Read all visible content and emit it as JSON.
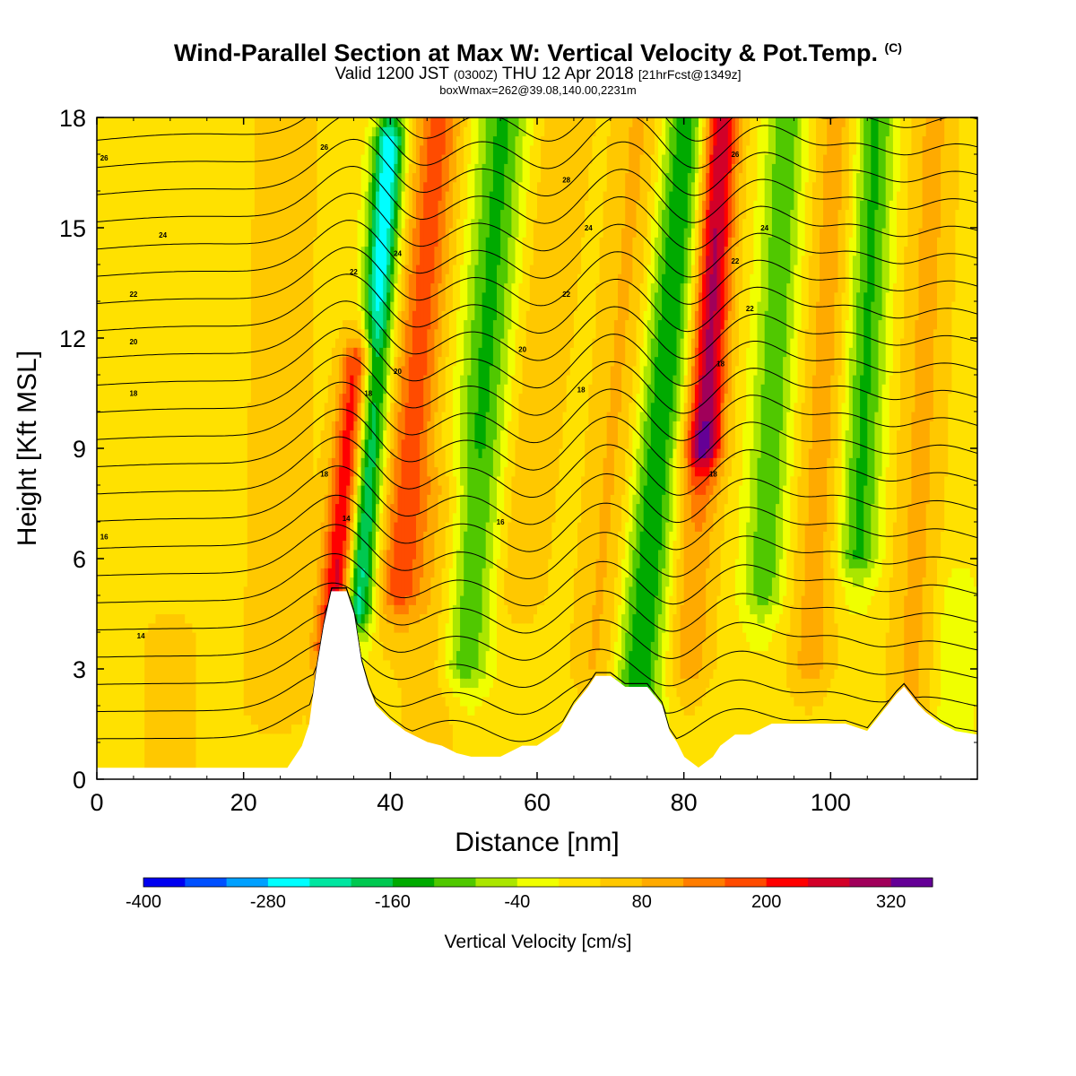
{
  "header": {
    "title_main": "Wind-Parallel Section at Max W: Vertical Velocity & Pot.Temp.",
    "title_copyright": "(C)",
    "valid_prefix": "Valid 1200 JST",
    "valid_utc": "(0300Z)",
    "valid_date": "THU 12 Apr 2018",
    "valid_fcst": "[21hrFcst@1349z]",
    "box_info": "boxWmax=262@39.08,140.00,2231m"
  },
  "chart_data": {
    "type": "heatmap",
    "xlabel": "Distance [nm]",
    "ylabel": "Height [Kft MSL]",
    "xlim": [
      0,
      120
    ],
    "ylim": [
      0,
      18
    ],
    "x_ticks": [
      0,
      20,
      40,
      60,
      80,
      100
    ],
    "y_ticks": [
      0,
      3,
      6,
      9,
      12,
      15,
      18
    ],
    "colorbar": {
      "title": "Vertical Velocity [cm/s]",
      "tick_labels": [
        "-400",
        "-280",
        "-160",
        "-40",
        "80",
        "200",
        "320"
      ],
      "tick_values": [
        -400,
        -280,
        -160,
        -40,
        80,
        200,
        320
      ],
      "levels": [
        -400,
        -360,
        -320,
        -280,
        -240,
        -200,
        -160,
        -120,
        -80,
        -40,
        0,
        40,
        80,
        120,
        160,
        200,
        240,
        280,
        320,
        360
      ],
      "colors": [
        "#0000f0",
        "#0050ff",
        "#00a0ff",
        "#00ffff",
        "#00e6a0",
        "#00c850",
        "#00aa00",
        "#50c800",
        "#aae600",
        "#f0ff00",
        "#ffe100",
        "#ffc800",
        "#ffaa00",
        "#ff7d00",
        "#ff4b00",
        "#ff0000",
        "#d20028",
        "#a0005a",
        "#640096"
      ]
    },
    "terrain_profile": {
      "x": [
        0,
        26,
        27,
        28,
        29,
        30,
        31,
        32,
        33,
        34,
        35,
        36,
        37,
        38,
        39,
        40,
        42,
        43,
        45,
        47,
        49,
        51,
        53,
        55,
        58,
        60,
        63,
        65,
        67,
        68,
        70,
        72,
        75,
        77,
        78,
        79,
        80,
        82,
        84,
        85,
        87,
        89,
        92,
        95,
        98,
        100,
        102,
        105,
        107,
        109,
        110,
        112,
        113,
        115,
        117,
        120
      ],
      "height_kft": [
        0.3,
        0.3,
        0.6,
        0.9,
        1.5,
        3.0,
        4.2,
        5.1,
        5.1,
        5.1,
        4.5,
        3.2,
        2.5,
        2.0,
        1.8,
        1.6,
        1.3,
        1.2,
        1.0,
        0.9,
        0.7,
        0.6,
        0.6,
        0.6,
        0.9,
        0.9,
        1.3,
        2.0,
        2.5,
        2.8,
        2.8,
        2.5,
        2.5,
        2.0,
        1.3,
        1.0,
        0.6,
        0.3,
        0.6,
        0.9,
        1.2,
        1.2,
        1.5,
        1.5,
        1.5,
        1.5,
        1.5,
        1.3,
        1.8,
        2.3,
        2.5,
        2.0,
        1.8,
        1.5,
        1.3,
        1.2
      ]
    },
    "pot_temp_contour_labels": [
      {
        "value": "26",
        "x": 1,
        "y": 16.9
      },
      {
        "value": "24",
        "x": 9,
        "y": 14.8
      },
      {
        "value": "22",
        "x": 5,
        "y": 13.2
      },
      {
        "value": "20",
        "x": 5,
        "y": 11.9
      },
      {
        "value": "18",
        "x": 5,
        "y": 10.5
      },
      {
        "value": "16",
        "x": 1,
        "y": 6.6
      },
      {
        "value": "14",
        "x": 6,
        "y": 3.9
      },
      {
        "value": "26",
        "x": 31,
        "y": 17.2
      },
      {
        "value": "22",
        "x": 35,
        "y": 13.8
      },
      {
        "value": "24",
        "x": 41,
        "y": 14.3
      },
      {
        "value": "20",
        "x": 41,
        "y": 11.1
      },
      {
        "value": "18",
        "x": 37,
        "y": 10.5
      },
      {
        "value": "18",
        "x": 31,
        "y": 8.3
      },
      {
        "value": "14",
        "x": 34,
        "y": 7.1
      },
      {
        "value": "28",
        "x": 64,
        "y": 16.3
      },
      {
        "value": "24",
        "x": 67,
        "y": 15.0
      },
      {
        "value": "22",
        "x": 64,
        "y": 13.2
      },
      {
        "value": "20",
        "x": 58,
        "y": 11.7
      },
      {
        "value": "18",
        "x": 66,
        "y": 10.6
      },
      {
        "value": "16",
        "x": 55,
        "y": 7.0
      },
      {
        "value": "26",
        "x": 87,
        "y": 17.0
      },
      {
        "value": "24",
        "x": 91,
        "y": 15.0
      },
      {
        "value": "22",
        "x": 87,
        "y": 14.1
      },
      {
        "value": "22",
        "x": 89,
        "y": 12.8
      },
      {
        "value": "18",
        "x": 85,
        "y": 11.3
      },
      {
        "value": "18",
        "x": 84,
        "y": 8.3
      }
    ]
  }
}
